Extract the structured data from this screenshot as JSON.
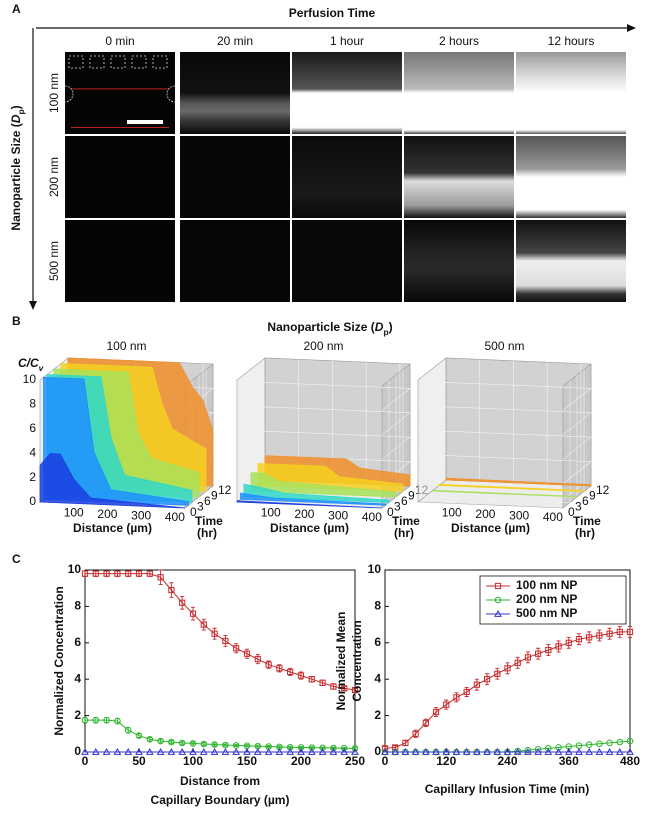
{
  "panel_a": {
    "label": "A",
    "axis_x": "Perfusion Time",
    "axis_y": {
      "text": "Nanoparticle Size (",
      "var": "D",
      "sub": "p",
      "close": ")"
    },
    "columns": [
      "0 min",
      "20 min",
      "1 hour",
      "2 hours",
      "12 hours"
    ],
    "rows": [
      "100 nm",
      "200 nm",
      "500 nm"
    ]
  },
  "panel_b": {
    "label": "B",
    "title": {
      "text": "Nanoparticle Size (",
      "var": "D",
      "sub": "p",
      "close": ")"
    },
    "plots": [
      "100 nm",
      "200 nm",
      "500 nm"
    ],
    "z_label": {
      "text": "C/C",
      "sub": "v"
    },
    "z_ticks": [
      "0",
      "2",
      "4",
      "6",
      "8",
      "10"
    ],
    "distance_ticks": [
      "100",
      "200",
      "300",
      "400"
    ],
    "time_ticks": [
      "0",
      "3",
      "6",
      "9",
      "12"
    ],
    "distance_label": "Distance (µm)",
    "time_label": [
      "Time",
      "(hr)"
    ]
  },
  "panel_c_label": "C",
  "chart_data": [
    {
      "type": "line",
      "xlabel": [
        "Distance from",
        "Capillary Boundary (µm)"
      ],
      "ylabel": [
        "Normalized Concentration"
      ],
      "x": [
        0,
        10,
        20,
        30,
        40,
        50,
        60,
        70,
        80,
        90,
        100,
        110,
        120,
        130,
        140,
        150,
        160,
        170,
        180,
        190,
        200,
        210,
        220,
        230,
        240,
        250
      ],
      "xlim": [
        0,
        250
      ],
      "xticks": [
        0,
        50,
        100,
        150,
        200,
        250
      ],
      "ylim": [
        0,
        10
      ],
      "yticks": [
        0,
        2,
        4,
        6,
        8,
        10
      ],
      "series": [
        {
          "name": "100 nm NP",
          "color": "#c8282c",
          "marker": "square",
          "values": [
            9.8,
            9.8,
            9.8,
            9.8,
            9.8,
            9.8,
            9.8,
            9.6,
            8.9,
            8.2,
            7.6,
            7.0,
            6.5,
            6.1,
            5.7,
            5.4,
            5.1,
            4.8,
            4.6,
            4.4,
            4.2,
            4.0,
            3.8,
            3.6,
            3.5,
            3.4
          ],
          "errors": [
            0.15,
            0.15,
            0.15,
            0.15,
            0.15,
            0.15,
            0.15,
            0.4,
            0.4,
            0.35,
            0.35,
            0.3,
            0.3,
            0.3,
            0.25,
            0.25,
            0.25,
            0.2,
            0.2,
            0.2,
            0.2,
            0.15,
            0.15,
            0.15,
            0.1,
            0.1
          ]
        },
        {
          "name": "200 nm NP",
          "color": "#2cb42c",
          "marker": "circle",
          "values": [
            1.75,
            1.75,
            1.75,
            1.7,
            1.2,
            0.9,
            0.7,
            0.6,
            0.55,
            0.5,
            0.47,
            0.44,
            0.41,
            0.38,
            0.36,
            0.34,
            0.32,
            0.3,
            0.28,
            0.26,
            0.25,
            0.24,
            0.23,
            0.22,
            0.21,
            0.2
          ],
          "errors": [
            0.15,
            0.15,
            0.15,
            0.15,
            0.15,
            0.1,
            0.1,
            0.1,
            0.08,
            0.08,
            0.08,
            0.08,
            0.08,
            0.06,
            0.06,
            0.06,
            0.06,
            0.06,
            0.06,
            0.06,
            0.05,
            0.05,
            0.05,
            0.05,
            0.05,
            0.05
          ]
        },
        {
          "name": "500 nm NP",
          "color": "#3333cc",
          "marker": "triangle",
          "values": [
            0,
            0,
            0,
            0,
            0,
            0,
            0,
            0,
            0,
            0,
            0,
            0,
            0,
            0,
            0,
            0,
            0,
            0,
            0,
            0,
            0,
            0,
            0,
            0,
            0,
            0
          ]
        }
      ]
    },
    {
      "type": "line",
      "xlabel": [
        "Capillary Infusion Time (min)"
      ],
      "ylabel": [
        "Normalized Mean",
        "Concentration"
      ],
      "x": [
        0,
        20,
        40,
        60,
        80,
        100,
        120,
        140,
        160,
        180,
        200,
        220,
        240,
        260,
        280,
        300,
        320,
        340,
        360,
        380,
        400,
        420,
        440,
        460,
        480
      ],
      "xlim": [
        0,
        480
      ],
      "xticks": [
        0,
        120,
        240,
        360,
        480
      ],
      "ylim": [
        0,
        10
      ],
      "yticks": [
        0,
        2,
        4,
        6,
        8,
        10
      ],
      "legend": "upper right",
      "series": [
        {
          "name": "100 nm NP",
          "color": "#c8282c",
          "marker": "square",
          "values": [
            0.2,
            0.25,
            0.5,
            1.0,
            1.6,
            2.2,
            2.6,
            3.0,
            3.3,
            3.7,
            4.0,
            4.3,
            4.6,
            4.9,
            5.2,
            5.4,
            5.6,
            5.8,
            6.0,
            6.2,
            6.3,
            6.4,
            6.5,
            6.6,
            6.6
          ],
          "errors": [
            0.1,
            0.1,
            0.15,
            0.2,
            0.2,
            0.25,
            0.25,
            0.25,
            0.25,
            0.3,
            0.3,
            0.3,
            0.3,
            0.3,
            0.3,
            0.3,
            0.3,
            0.3,
            0.3,
            0.3,
            0.3,
            0.3,
            0.3,
            0.3,
            0.3
          ]
        },
        {
          "name": "200 nm NP",
          "color": "#2cb42c",
          "marker": "circle",
          "values": [
            0,
            0,
            0,
            0,
            0,
            0,
            0,
            0,
            0,
            0,
            0,
            0,
            0,
            0.05,
            0.1,
            0.15,
            0.2,
            0.25,
            0.3,
            0.35,
            0.4,
            0.45,
            0.5,
            0.55,
            0.6
          ]
        },
        {
          "name": "500 nm NP",
          "color": "#3333cc",
          "marker": "triangle",
          "values": [
            0,
            0,
            0,
            0,
            0,
            0,
            0,
            0,
            0,
            0,
            0,
            0,
            0,
            0,
            0,
            0,
            0,
            0,
            0,
            0,
            0,
            0,
            0,
            0,
            0
          ]
        }
      ]
    }
  ]
}
